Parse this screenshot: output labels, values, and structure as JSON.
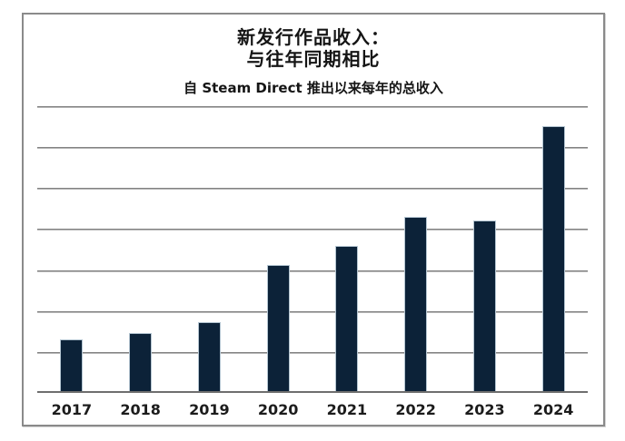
{
  "page": {
    "background": "#ffffff"
  },
  "chart": {
    "title_line1": "新发行作品收入：",
    "title_line2": "与往年同期相比",
    "subtitle": "自 Steam Direct 推出以来每年的总收入"
  },
  "chart_data": {
    "type": "bar",
    "title": "新发行作品收入：与往年同期相比",
    "subtitle": "自 Steam Direct 推出以来每年的总收入",
    "categories": [
      "2017",
      "2018",
      "2019",
      "2020",
      "2021",
      "2022",
      "2023",
      "2024"
    ],
    "values": [
      1.27,
      1.42,
      1.69,
      3.08,
      3.55,
      4.26,
      4.17,
      6.47
    ],
    "value_note": "y-axis has no tick labels; values measured in gridline units",
    "xlabel": "",
    "ylabel": "",
    "ylim": [
      0,
      7
    ],
    "gridline_count": 7,
    "grid": true,
    "legend": false,
    "colors": {
      "bar_fill": "#0c2238",
      "bar_outline": "#b5c6d2",
      "grid_line": "#6e6e6e",
      "axis_line": "#6e6e6e",
      "frame_border": "#8a8a8a",
      "text": "#151515"
    }
  }
}
